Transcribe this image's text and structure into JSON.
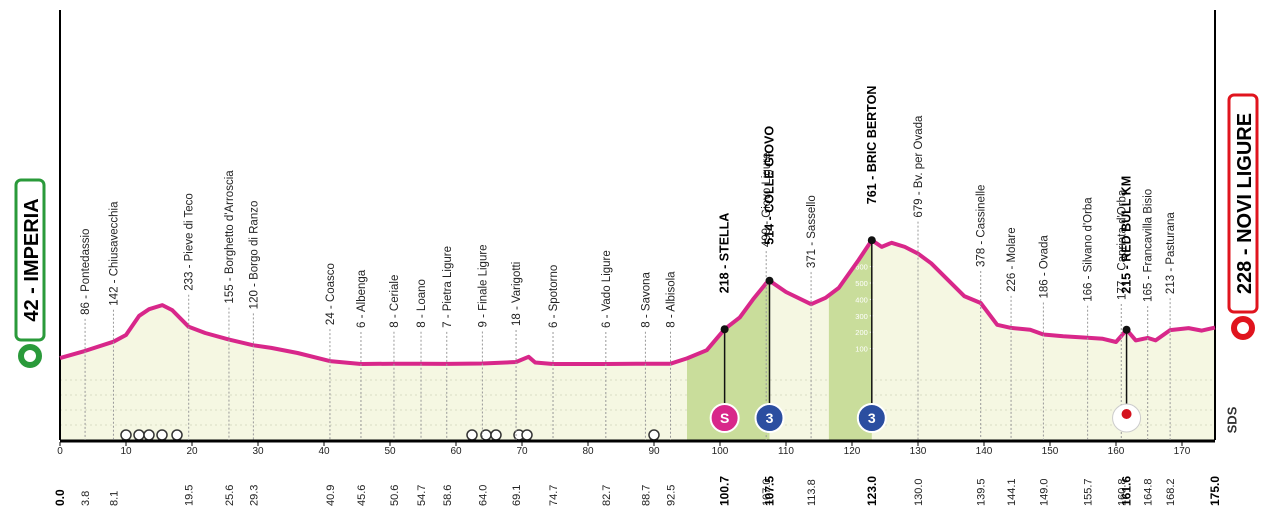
{
  "chart_data": {
    "type": "area",
    "x": [
      0,
      3.8,
      8.1,
      10,
      12,
      13.5,
      15.5,
      17,
      19.5,
      22,
      25.6,
      29.3,
      32,
      36,
      40.9,
      45.6,
      50.6,
      54.7,
      58.6,
      64,
      69.1,
      71,
      72,
      74.7,
      82.7,
      88.7,
      92.5,
      95,
      98,
      100.7,
      103,
      105,
      107,
      107.5,
      110,
      113.8,
      116,
      118,
      121,
      123,
      124.5,
      126,
      128,
      130,
      132,
      134.5,
      137,
      139.5,
      142,
      144.1,
      147,
      149,
      152,
      155.7,
      158,
      160,
      160.8,
      161.6,
      163,
      164.8,
      166,
      168.2,
      171,
      173,
      175
    ],
    "values": [
      42,
      86,
      142,
      183,
      300,
      340,
      365,
      335,
      233,
      195,
      155,
      120,
      104,
      73,
      24,
      6,
      8,
      8,
      7,
      9,
      18,
      50,
      15,
      6,
      6,
      8,
      8,
      40,
      90,
      218,
      290,
      400,
      499,
      514,
      445,
      371,
      410,
      470,
      640,
      761,
      720,
      745,
      720,
      679,
      620,
      520,
      420,
      378,
      245,
      226,
      215,
      186,
      175,
      166,
      160,
      140,
      177,
      215,
      150,
      165,
      150,
      213,
      225,
      210,
      228
    ],
    "color": "#d8278a",
    "fill": "#f5f7e2",
    "climb_fill": "#c9dd9b",
    "xlim": [
      0,
      175
    ],
    "xticks": [
      0,
      10,
      20,
      30,
      40,
      50,
      60,
      70,
      80,
      90,
      100,
      110,
      120,
      130,
      140,
      150,
      160,
      170
    ],
    "ylim": [
      0,
      800
    ],
    "yticks": [
      100,
      200,
      300,
      400,
      500,
      600
    ],
    "start": {
      "label": "42 - IMPERIA",
      "km": {
        "value": 0,
        "label": "0.0"
      },
      "color": "#2a9a3a"
    },
    "finish": {
      "label": "228 - NOVI LIGURE",
      "km": {
        "value": 175,
        "label": "175.0"
      },
      "color": "#e0141e"
    },
    "climb_zones": [
      [
        95,
        107.5
      ],
      [
        116.5,
        123
      ]
    ],
    "climbs": [
      {
        "km": 100.7,
        "label": "S",
        "color": "#d8278a"
      },
      {
        "km": 107.5,
        "label": "3",
        "color": "#2b4ea0"
      },
      {
        "km": 123,
        "label": "3",
        "color": "#2b4ea0"
      }
    ],
    "waypoints": [
      {
        "label": "86 - Pontedassio",
        "km": 3.8
      },
      {
        "label": "142 - Chiusavecchia",
        "km": 8.1
      },
      {
        "label": "233 - Pieve di Teco",
        "km": 19.5
      },
      {
        "label": "155 - Borghetto d'Arroscia",
        "km": 25.6
      },
      {
        "label": "120 - Borgo di Ranzo",
        "km": 29.3
      },
      {
        "label": "24 - Coasco",
        "km": 40.9
      },
      {
        "label": "6 - Albenga",
        "km": 45.6
      },
      {
        "label": "8 - Ceriale",
        "km": 50.6
      },
      {
        "label": "8 - Loano",
        "km": 54.7
      },
      {
        "label": "7 - Pietra Ligure",
        "km": 58.6
      },
      {
        "label": "9 - Finale Ligure",
        "km": {
          "value": 64,
          "label": "64.0"
        }
      },
      {
        "label": "18 - Varigotti",
        "km": 69.1
      },
      {
        "label": "6 - Spotorno",
        "km": 74.7
      },
      {
        "label": "6 - Vado Ligure",
        "km": 82.7
      },
      {
        "label": "8 - Savona",
        "km": 88.7
      },
      {
        "label": "8 - Albisola",
        "km": 92.5
      },
      {
        "label": "218 - STELLA",
        "km": 100.7,
        "bold": true
      },
      {
        "label": "499 - Giovo Ligure",
        "km": {
          "value": 107,
          "label": "107.0"
        }
      },
      {
        "label": "514 - COLLE GIOVO",
        "km": 107.5,
        "bold": true
      },
      {
        "label": "371 - Sassello",
        "km": 113.8
      },
      {
        "label": "761 - BRIC BERTON",
        "km": {
          "value": 123,
          "label": "123.0"
        },
        "bold": true
      },
      {
        "label": "679 - Bv. per Ovada",
        "km": {
          "value": 130,
          "label": "130.0"
        }
      },
      {
        "label": "378 - Cassinelle",
        "km": 139.5
      },
      {
        "label": "226 - Molare",
        "km": 144.1
      },
      {
        "label": "186 - Ovada",
        "km": {
          "value": 149,
          "label": "149.0"
        }
      },
      {
        "label": "166 - Silvano d'Orba",
        "km": 155.7
      },
      {
        "label": "177 - Capriata d'Orba",
        "km": 160.8
      },
      {
        "label": "215 - RED BULL KM",
        "km": 161.6,
        "bold": true
      },
      {
        "label": "165 - Francavilla Bisio",
        "km": 164.8
      },
      {
        "label": "213 - Pasturana",
        "km": 168.2
      }
    ],
    "watermark": "SDS"
  }
}
